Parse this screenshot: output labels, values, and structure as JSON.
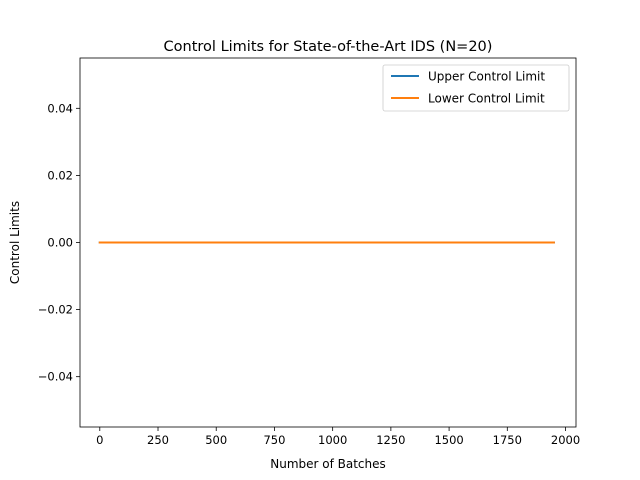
{
  "chart_data": {
    "type": "line",
    "title": "Control Limits for State-of-the-Art IDS (N=20)",
    "xlabel": "Number of Batches",
    "ylabel": "Control Limits",
    "xlim": [
      -85,
      2045
    ],
    "ylim": [
      -0.055,
      0.055
    ],
    "xticks": [
      0,
      250,
      500,
      750,
      1000,
      1250,
      1500,
      1750,
      2000
    ],
    "xtick_labels": [
      "0",
      "250",
      "500",
      "750",
      "1000",
      "1250",
      "1500",
      "1750",
      "2000"
    ],
    "yticks": [
      0.04,
      0.02,
      0.0,
      -0.02,
      -0.04
    ],
    "ytick_labels": [
      "0.04",
      "0.02",
      "0.00",
      "−0.02",
      "−0.04"
    ],
    "grid": false,
    "legend_position": "top-right",
    "series": [
      {
        "name": "Upper Control Limit",
        "color": "#1f77b4",
        "x": [
          0,
          1950
        ],
        "y": [
          0.0,
          0.0
        ]
      },
      {
        "name": "Lower Control Limit",
        "color": "#ff7f0e",
        "x": [
          0,
          1950
        ],
        "y": [
          0.0,
          0.0
        ]
      }
    ]
  }
}
